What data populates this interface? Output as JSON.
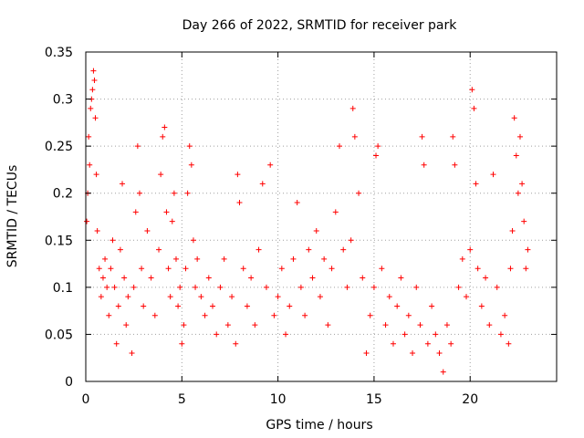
{
  "chart_data": {
    "type": "scatter",
    "title": "Day 266 of 2022, SRMTID for receiver park",
    "xlabel": "GPS time / hours",
    "ylabel": "SRMTID / TECUs",
    "xlim": [
      0,
      24.5
    ],
    "ylim": [
      0,
      0.35
    ],
    "x_ticks": [
      0,
      5,
      10,
      15,
      20
    ],
    "x_tick_labels": [
      "0",
      "5",
      "10",
      "15",
      "20"
    ],
    "y_ticks": [
      0,
      0.05,
      0.1,
      0.15,
      0.2,
      0.25,
      0.3,
      0.35
    ],
    "y_tick_labels": [
      "0",
      "0.05",
      "0.1",
      "0.15",
      "0.2",
      "0.25",
      "0.3",
      "0.35"
    ],
    "grid": true,
    "marker": "+",
    "color": "#ff0000",
    "series": [
      {
        "name": "SRMTID",
        "points": [
          [
            0.05,
            0.17
          ],
          [
            0.1,
            0.2
          ],
          [
            0.15,
            0.26
          ],
          [
            0.2,
            0.23
          ],
          [
            0.25,
            0.29
          ],
          [
            0.3,
            0.3
          ],
          [
            0.35,
            0.31
          ],
          [
            0.4,
            0.33
          ],
          [
            0.45,
            0.32
          ],
          [
            0.5,
            0.28
          ],
          [
            0.55,
            0.22
          ],
          [
            0.6,
            0.16
          ],
          [
            0.7,
            0.12
          ],
          [
            0.8,
            0.09
          ],
          [
            0.9,
            0.11
          ],
          [
            1.0,
            0.13
          ],
          [
            1.1,
            0.1
          ],
          [
            1.2,
            0.07
          ],
          [
            1.3,
            0.12
          ],
          [
            1.4,
            0.15
          ],
          [
            1.5,
            0.1
          ],
          [
            1.6,
            0.04
          ],
          [
            1.7,
            0.08
          ],
          [
            1.8,
            0.14
          ],
          [
            1.9,
            0.21
          ],
          [
            2.0,
            0.11
          ],
          [
            2.1,
            0.06
          ],
          [
            2.2,
            0.09
          ],
          [
            2.4,
            0.03
          ],
          [
            2.5,
            0.1
          ],
          [
            2.6,
            0.18
          ],
          [
            2.7,
            0.25
          ],
          [
            2.8,
            0.2
          ],
          [
            2.9,
            0.12
          ],
          [
            3.0,
            0.08
          ],
          [
            3.2,
            0.16
          ],
          [
            3.4,
            0.11
          ],
          [
            3.6,
            0.07
          ],
          [
            3.8,
            0.14
          ],
          [
            3.9,
            0.22
          ],
          [
            4.0,
            0.26
          ],
          [
            4.1,
            0.27
          ],
          [
            4.2,
            0.18
          ],
          [
            4.3,
            0.12
          ],
          [
            4.4,
            0.09
          ],
          [
            4.5,
            0.17
          ],
          [
            4.6,
            0.2
          ],
          [
            4.7,
            0.13
          ],
          [
            4.8,
            0.08
          ],
          [
            4.9,
            0.1
          ],
          [
            5.0,
            0.04
          ],
          [
            5.1,
            0.06
          ],
          [
            5.2,
            0.12
          ],
          [
            5.3,
            0.2
          ],
          [
            5.4,
            0.25
          ],
          [
            5.5,
            0.23
          ],
          [
            5.6,
            0.15
          ],
          [
            5.7,
            0.1
          ],
          [
            5.8,
            0.13
          ],
          [
            6.0,
            0.09
          ],
          [
            6.2,
            0.07
          ],
          [
            6.4,
            0.11
          ],
          [
            6.6,
            0.08
          ],
          [
            6.8,
            0.05
          ],
          [
            7.0,
            0.1
          ],
          [
            7.2,
            0.13
          ],
          [
            7.4,
            0.06
          ],
          [
            7.6,
            0.09
          ],
          [
            7.8,
            0.04
          ],
          [
            7.9,
            0.22
          ],
          [
            8.0,
            0.19
          ],
          [
            8.2,
            0.12
          ],
          [
            8.4,
            0.08
          ],
          [
            8.6,
            0.11
          ],
          [
            8.8,
            0.06
          ],
          [
            9.0,
            0.14
          ],
          [
            9.2,
            0.21
          ],
          [
            9.4,
            0.1
          ],
          [
            9.6,
            0.23
          ],
          [
            9.8,
            0.07
          ],
          [
            10.0,
            0.09
          ],
          [
            10.2,
            0.12
          ],
          [
            10.4,
            0.05
          ],
          [
            10.6,
            0.08
          ],
          [
            10.8,
            0.13
          ],
          [
            11.0,
            0.19
          ],
          [
            11.2,
            0.1
          ],
          [
            11.4,
            0.07
          ],
          [
            11.6,
            0.14
          ],
          [
            11.8,
            0.11
          ],
          [
            12.0,
            0.16
          ],
          [
            12.2,
            0.09
          ],
          [
            12.4,
            0.13
          ],
          [
            12.6,
            0.06
          ],
          [
            12.8,
            0.12
          ],
          [
            13.0,
            0.18
          ],
          [
            13.2,
            0.25
          ],
          [
            13.4,
            0.14
          ],
          [
            13.6,
            0.1
          ],
          [
            13.8,
            0.15
          ],
          [
            13.9,
            0.29
          ],
          [
            14.0,
            0.26
          ],
          [
            14.2,
            0.2
          ],
          [
            14.4,
            0.11
          ],
          [
            14.6,
            0.03
          ],
          [
            14.8,
            0.07
          ],
          [
            15.0,
            0.1
          ],
          [
            15.1,
            0.24
          ],
          [
            15.2,
            0.25
          ],
          [
            15.4,
            0.12
          ],
          [
            15.6,
            0.06
          ],
          [
            15.8,
            0.09
          ],
          [
            16.0,
            0.04
          ],
          [
            16.2,
            0.08
          ],
          [
            16.4,
            0.11
          ],
          [
            16.6,
            0.05
          ],
          [
            16.8,
            0.07
          ],
          [
            17.0,
            0.03
          ],
          [
            17.2,
            0.1
          ],
          [
            17.4,
            0.06
          ],
          [
            17.5,
            0.26
          ],
          [
            17.6,
            0.23
          ],
          [
            17.8,
            0.04
          ],
          [
            18.0,
            0.08
          ],
          [
            18.2,
            0.05
          ],
          [
            18.4,
            0.03
          ],
          [
            18.6,
            0.01
          ],
          [
            18.8,
            0.06
          ],
          [
            19.0,
            0.04
          ],
          [
            19.1,
            0.26
          ],
          [
            19.2,
            0.23
          ],
          [
            19.4,
            0.1
          ],
          [
            19.6,
            0.13
          ],
          [
            19.8,
            0.09
          ],
          [
            20.0,
            0.14
          ],
          [
            20.1,
            0.31
          ],
          [
            20.2,
            0.29
          ],
          [
            20.3,
            0.21
          ],
          [
            20.4,
            0.12
          ],
          [
            20.6,
            0.08
          ],
          [
            20.8,
            0.11
          ],
          [
            21.0,
            0.06
          ],
          [
            21.2,
            0.22
          ],
          [
            21.4,
            0.1
          ],
          [
            21.6,
            0.05
          ],
          [
            21.8,
            0.07
          ],
          [
            22.0,
            0.04
          ],
          [
            22.1,
            0.12
          ],
          [
            22.2,
            0.16
          ],
          [
            22.3,
            0.28
          ],
          [
            22.4,
            0.24
          ],
          [
            22.5,
            0.2
          ],
          [
            22.6,
            0.26
          ],
          [
            22.7,
            0.21
          ],
          [
            22.8,
            0.17
          ],
          [
            22.9,
            0.12
          ],
          [
            23.0,
            0.14
          ]
        ]
      }
    ]
  }
}
